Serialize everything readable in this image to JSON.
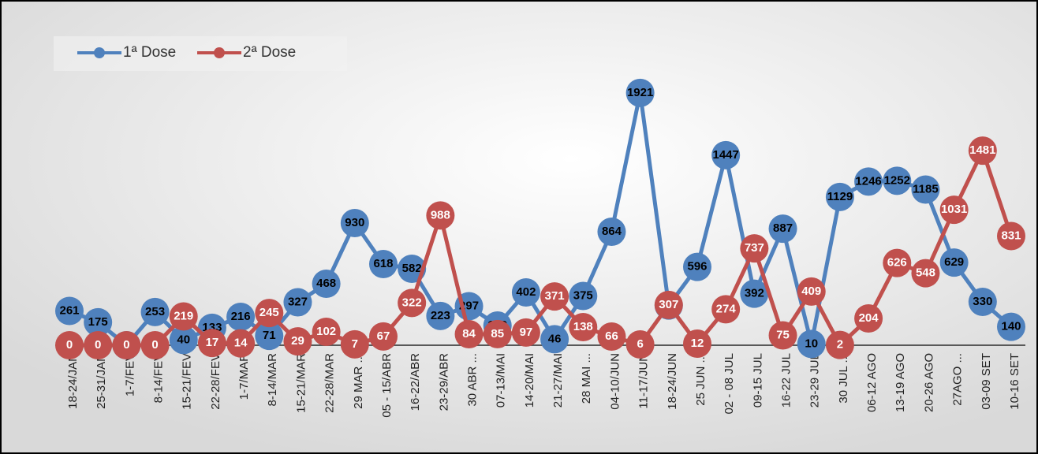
{
  "chart_data": {
    "type": "line",
    "categories": [
      "18-24/JAN",
      "25-31/JAN",
      "1-7/FEV",
      "8-14/FEV",
      "15-21/FEV",
      "22-28/FEV",
      "1-7/MAR",
      "8-14/MAR",
      "15-21/MAR",
      "22-28/MAR",
      "29 MAR ...",
      "05 - 15/ABR",
      "16-22/ABR",
      "23-29/ABR",
      "30 ABR ...",
      "07-13/MAI",
      "14-20/MAI",
      "21-27/MAI",
      "28 MAI ...",
      "04-10/JUN",
      "11-17/JUN",
      "18-24/JUN",
      "25 JUN ...",
      "02 - 08 JUL",
      "09-15 JUL",
      "16-22 JUL",
      "23-29 JUL",
      "30 JUL ...",
      "06-12 AGO",
      "13-19 AGO",
      "20-26 AGO",
      "27AGO ...",
      "03-09 SET",
      "10-16 SET"
    ],
    "series": [
      {
        "name": "1ª Dose",
        "color": "#4f81bd",
        "values": [
          261,
          175,
          0,
          253,
          40,
          133,
          216,
          71,
          327,
          468,
          930,
          618,
          582,
          223,
          297,
          150,
          402,
          46,
          375,
          864,
          1921,
          302,
          596,
          1447,
          392,
          887,
          10,
          1129,
          1246,
          1252,
          1185,
          629,
          330,
          140
        ]
      },
      {
        "name": "2ª Dose",
        "color": "#c0504d",
        "values": [
          0,
          0,
          0,
          0,
          219,
          17,
          14,
          245,
          29,
          102,
          7,
          67,
          322,
          988,
          84,
          85,
          97,
          371,
          138,
          66,
          6,
          307,
          12,
          274,
          737,
          75,
          409,
          2,
          204,
          626,
          548,
          1031,
          1481,
          831
        ]
      }
    ],
    "ylim": [
      0,
      2100
    ]
  }
}
